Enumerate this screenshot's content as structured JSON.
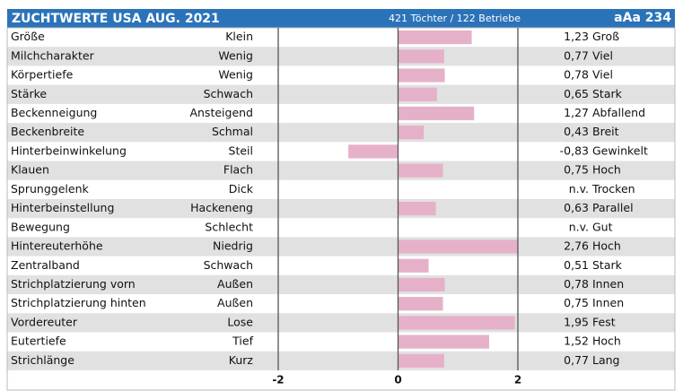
{
  "chart_data": {
    "type": "bar",
    "title": "ZUCHTWERTE USA AUG. 2021",
    "subtitle": "421 Töchter / 122 Betriebe",
    "badge": "aAa 234",
    "categories": [
      "Größe",
      "Milchcharakter",
      "Körpertiefe",
      "Stärke",
      "Beckenneigung",
      "Beckenbreite",
      "Hinterbeinwinkelung",
      "Klauen",
      "Sprunggelenk",
      "Hinterbeinstellung",
      "Bewegung",
      "Hintereuterhöhe",
      "Zentralband",
      "Strichplatzierung vorn",
      "Strichplatzierung hinten",
      "Vordereuter",
      "Eutertiefe",
      "Strichlänge"
    ],
    "left_labels": [
      "Klein",
      "Wenig",
      "Wenig",
      "Schwach",
      "Ansteigend",
      "Schmal",
      "Steil",
      "Flach",
      "Dick",
      "Hackeneng",
      "Schlecht",
      "Niedrig",
      "Schwach",
      "Außen",
      "Außen",
      "Lose",
      "Tief",
      "Kurz"
    ],
    "right_labels": [
      "Groß",
      "Viel",
      "Viel",
      "Stark",
      "Abfallend",
      "Breit",
      "Gewinkelt",
      "Hoch",
      "Trocken",
      "Parallel",
      "Gut",
      "Hoch",
      "Stark",
      "Innen",
      "Innen",
      "Fest",
      "Hoch",
      "Lang"
    ],
    "values": [
      1.23,
      0.77,
      0.78,
      0.65,
      1.27,
      0.43,
      -0.83,
      0.75,
      null,
      0.63,
      null,
      2.76,
      0.51,
      0.78,
      0.75,
      1.95,
      1.52,
      0.77
    ],
    "value_labels": [
      "1,23",
      "0,77",
      "0,78",
      "0,65",
      "1,27",
      "0,43",
      "-0,83",
      "0,75",
      "n.v.",
      "0,63",
      "n.v.",
      "2,76",
      "0,51",
      "0,78",
      "0,75",
      "1,95",
      "1,52",
      "0,77"
    ],
    "color": "#e5b1c9",
    "xlim": [
      -2,
      2
    ],
    "xticks": [
      -2,
      0,
      2
    ]
  }
}
